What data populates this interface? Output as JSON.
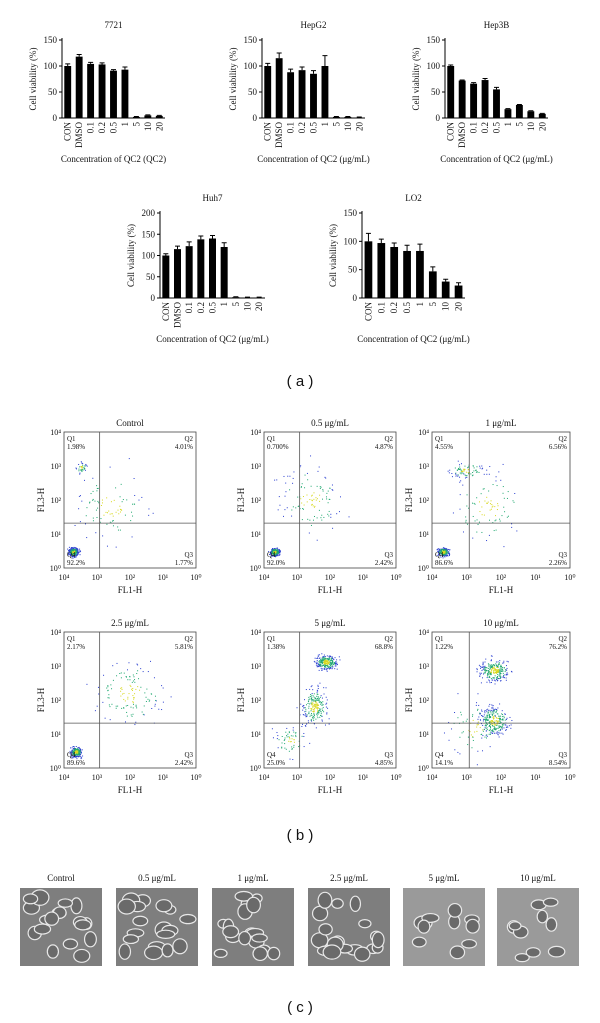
{
  "chart_data": [
    {
      "type": "bar",
      "title": "7721",
      "y_label": "Cell viability (%)",
      "x_label": "Concentration of QC2 (QC2)",
      "color": "#000000",
      "categories": [
        "CON",
        "DMSO",
        "0.1",
        "0.2",
        "0.5",
        "1",
        "5",
        "10",
        "20"
      ],
      "values": [
        100,
        118,
        104,
        103,
        91,
        93,
        2,
        5,
        4
      ],
      "errors": [
        4,
        4,
        3,
        3,
        2,
        5,
        1,
        1,
        1
      ],
      "ylim": [
        0,
        150
      ],
      "yticks": [
        0,
        50,
        100,
        150
      ]
    },
    {
      "type": "bar",
      "title": "HepG2",
      "y_label": "Cell viability (%)",
      "x_label": "Concentration of QC2 (μg/mL)",
      "color": "#000000",
      "categories": [
        "CON",
        "DMSO",
        "0.1",
        "0.2",
        "0.5",
        "1",
        "5",
        "10",
        "20"
      ],
      "values": [
        100,
        115,
        88,
        92,
        85,
        100,
        2,
        2,
        1
      ],
      "errors": [
        5,
        10,
        6,
        6,
        6,
        20,
        1,
        1,
        1
      ],
      "ylim": [
        0,
        150
      ],
      "yticks": [
        0,
        50,
        100,
        150
      ]
    },
    {
      "type": "bar",
      "title": "Hep3B",
      "y_label": "Cell viability (%)",
      "x_label": "Concentration of QC2 (μg/mL)",
      "color": "#000000",
      "categories": [
        "CON",
        "DMSO",
        "0.1",
        "0.2",
        "0.5",
        "1",
        "5",
        "10",
        "20"
      ],
      "values": [
        100,
        72,
        66,
        73,
        55,
        17,
        25,
        13,
        8
      ],
      "errors": [
        2,
        1,
        2,
        3,
        4,
        1,
        1,
        1,
        1
      ],
      "ylim": [
        0,
        150
      ],
      "yticks": [
        0,
        50,
        100,
        150
      ]
    },
    {
      "type": "bar",
      "title": "Huh7",
      "y_label": "Cell viability (%)",
      "x_label": "Concentration of QC2 (μg/mL)",
      "color": "#000000",
      "categories": [
        "CON",
        "DMSO",
        "0.1",
        "0.2",
        "0.5",
        "1",
        "5",
        "10",
        "20"
      ],
      "values": [
        100,
        115,
        122,
        138,
        140,
        120,
        2,
        1,
        1
      ],
      "errors": [
        4,
        7,
        10,
        8,
        7,
        10,
        1,
        1,
        1
      ],
      "ylim": [
        0,
        200
      ],
      "yticks": [
        0,
        50,
        100,
        150,
        200
      ]
    },
    {
      "type": "bar",
      "title": "LO2",
      "y_label": "Cell viability (%)",
      "x_label": "Concentration of QC2 (μg/mL)",
      "color": "#000000",
      "categories": [
        "CON",
        "0.1",
        "0.2",
        "0.5",
        "1",
        "5",
        "10",
        "20"
      ],
      "values": [
        100,
        97,
        90,
        83,
        83,
        47,
        29,
        22
      ],
      "errors": [
        14,
        7,
        7,
        10,
        12,
        8,
        4,
        5
      ],
      "ylim": [
        0,
        150
      ],
      "yticks": [
        0,
        50,
        100,
        150
      ]
    }
  ],
  "panel_labels": [
    "( a )",
    "( b )",
    "( c )"
  ],
  "flow": {
    "x_label": "FL1-H",
    "y_label": "FL3-H",
    "x_ticks": [
      "10⁴",
      "10³",
      "10²",
      "10¹",
      "10⁰"
    ],
    "y_ticks": [
      "10⁰",
      "10¹",
      "10²",
      "10³",
      "10⁴"
    ],
    "panels": [
      {
        "title": "Control",
        "quadrants": [
          {
            "name": "Q1",
            "value": "1.98%"
          },
          {
            "name": "Q2",
            "value": "4.01%"
          },
          {
            "name": "Q3",
            "value": "1.77%"
          },
          {
            "name": "Q4",
            "value": "92.2%"
          }
        ]
      },
      {
        "title": "0.5 μg/mL",
        "quadrants": [
          {
            "name": "Q1",
            "value": "0.700%"
          },
          {
            "name": "Q2",
            "value": "4.87%"
          },
          {
            "name": "Q3",
            "value": "2.42%"
          },
          {
            "name": "Q4",
            "value": "92.0%"
          }
        ]
      },
      {
        "title": "1 μg/mL",
        "quadrants": [
          {
            "name": "Q1",
            "value": "4.55%"
          },
          {
            "name": "Q2",
            "value": "6.56%"
          },
          {
            "name": "Q3",
            "value": "2.26%"
          },
          {
            "name": "Q4",
            "value": "86.6%"
          }
        ]
      },
      {
        "title": "2.5 μg/mL",
        "quadrants": [
          {
            "name": "Q1",
            "value": "2.17%"
          },
          {
            "name": "Q2",
            "value": "5.81%"
          },
          {
            "name": "Q3",
            "value": "2.42%"
          },
          {
            "name": "Q4",
            "value": "89.6%"
          }
        ]
      },
      {
        "title": "5 μg/mL",
        "quadrants": [
          {
            "name": "Q1",
            "value": "1.38%"
          },
          {
            "name": "Q2",
            "value": "68.8%"
          },
          {
            "name": "Q3",
            "value": "4.85%"
          },
          {
            "name": "Q4",
            "value": "25.0%"
          }
        ]
      },
      {
        "title": "10 μg/mL",
        "quadrants": [
          {
            "name": "Q1",
            "value": "1.22%"
          },
          {
            "name": "Q2",
            "value": "76.2%"
          },
          {
            "name": "Q3",
            "value": "8.54%"
          },
          {
            "name": "Q4",
            "value": "14.1%"
          }
        ]
      }
    ]
  },
  "micrographs": {
    "labels": [
      "Control",
      "0.5 μg/mL",
      "1 μg/mL",
      "2.5 μg/mL",
      "5 μg/mL",
      "10 μg/mL"
    ]
  }
}
